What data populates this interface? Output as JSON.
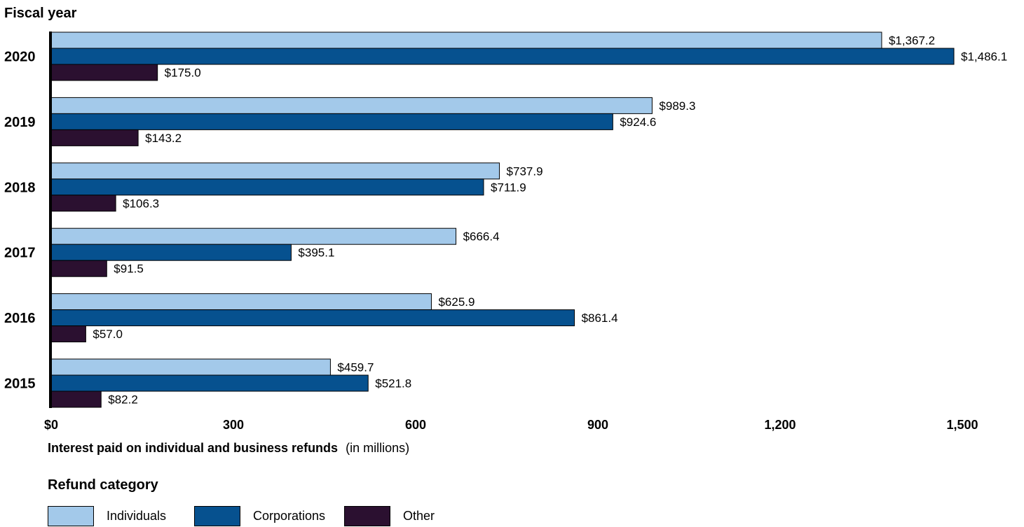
{
  "chart_data": {
    "type": "bar",
    "orientation": "horizontal",
    "categories": [
      "2020",
      "2019",
      "2018",
      "2017",
      "2016",
      "2015"
    ],
    "series": [
      {
        "name": "Individuals",
        "color": "#a3c9ea",
        "values": [
          1367.2,
          989.3,
          737.9,
          666.4,
          625.9,
          459.7
        ],
        "labels": [
          "$1,367.2",
          "$989.3",
          "$737.9",
          "$666.4",
          "$625.9",
          "$459.7"
        ]
      },
      {
        "name": "Corporations",
        "color": "#06518f",
        "values": [
          1486.1,
          924.6,
          711.9,
          395.1,
          861.4,
          521.8
        ],
        "labels": [
          "$1,486.1",
          "$924.6",
          "$711.9",
          "$395.1",
          "$861.4",
          "$521.8"
        ]
      },
      {
        "name": "Other",
        "color": "#2b1030",
        "values": [
          175.0,
          143.2,
          106.3,
          91.5,
          57.0,
          82.2
        ],
        "labels": [
          "$175.0",
          "$143.2",
          "$106.3",
          "$91.5",
          "$57.0",
          "$82.2"
        ]
      }
    ],
    "xlim": [
      0,
      1500
    ],
    "xticks": [
      0,
      300,
      600,
      900,
      1200,
      1500
    ],
    "xtick_labels": [
      "$0",
      "300",
      "600",
      "900",
      "1,200",
      "1,500"
    ],
    "ylabel": "Fiscal year",
    "xlabel_bold": "Interest paid on individual and business refunds",
    "xlabel_normal": "(in millions)",
    "legend_title": "Refund category",
    "legend_position": "bottom-left",
    "grid": false
  }
}
